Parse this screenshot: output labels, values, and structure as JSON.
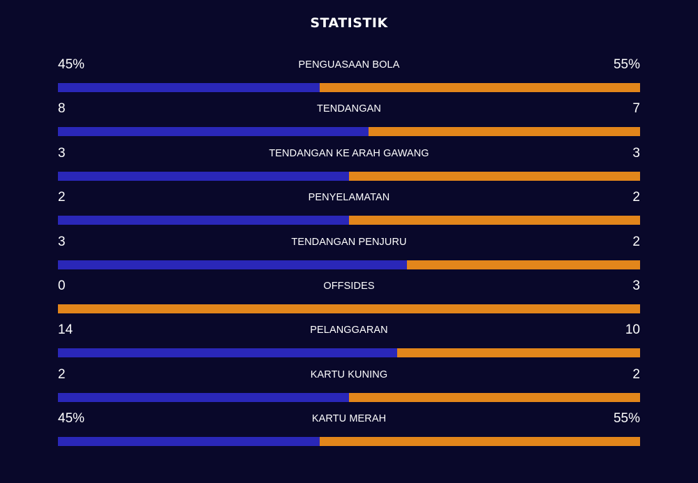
{
  "title": "STATISTIK",
  "colors": {
    "background": "#09082a",
    "home": "#2a27b8",
    "away": "#e2861b"
  },
  "stats": [
    {
      "label": "PENGUASAAN BOLA",
      "left": "45%",
      "right": "55%",
      "left_fraction": 0.45
    },
    {
      "label": "TENDANGAN",
      "left": "8",
      "right": "7",
      "left_fraction": 0.533
    },
    {
      "label": "TENDANGAN KE ARAH GAWANG",
      "left": "3",
      "right": "3",
      "left_fraction": 0.5
    },
    {
      "label": "PENYELAMATAN",
      "left": "2",
      "right": "2",
      "left_fraction": 0.5
    },
    {
      "label": "TENDANGAN PENJURU",
      "left": "3",
      "right": "2",
      "left_fraction": 0.6
    },
    {
      "label": "OFFSIDES",
      "left": "0",
      "right": "3",
      "left_fraction": 0.0
    },
    {
      "label": "PELANGGARAN",
      "left": "14",
      "right": "10",
      "left_fraction": 0.583
    },
    {
      "label": "KARTU KUNING",
      "left": "2",
      "right": "2",
      "left_fraction": 0.5
    },
    {
      "label": "KARTU MERAH",
      "left": "45%",
      "right": "55%",
      "left_fraction": 0.45
    }
  ]
}
